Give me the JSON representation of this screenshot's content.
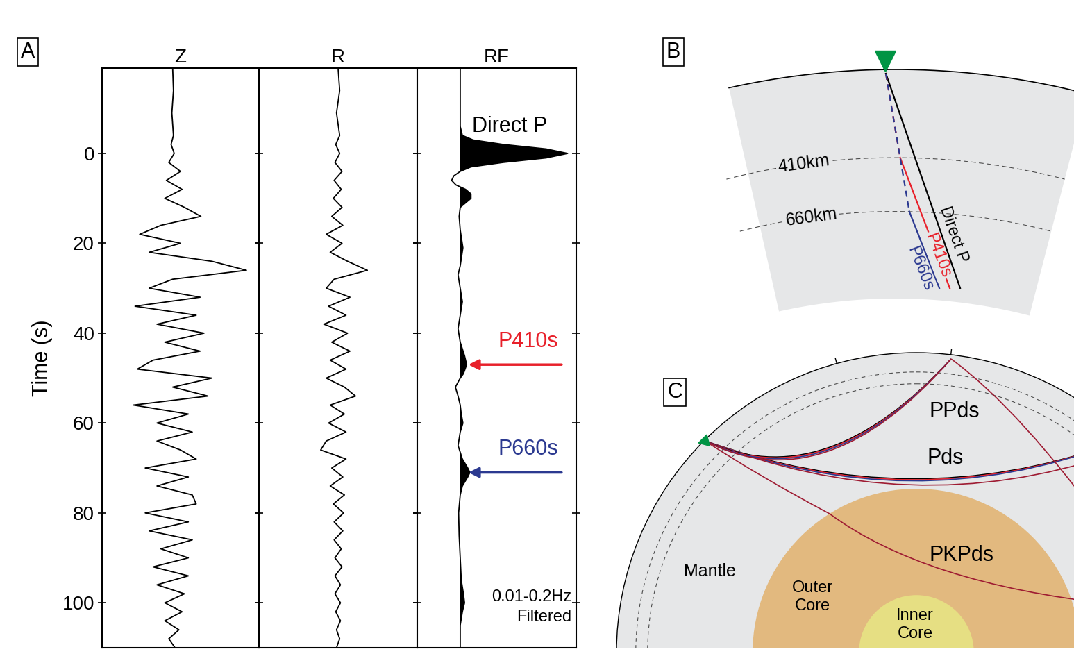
{
  "panel_a": {
    "label": "A"
  },
  "chart_data": [
    {
      "type": "line",
      "title": "Z",
      "ylabel": "Time (s)",
      "orientation": "horizontal",
      "color": "#000000",
      "x": [
        -19,
        -14,
        -9,
        -4,
        -2,
        0,
        2,
        4,
        6,
        8,
        10,
        12,
        14,
        16,
        18,
        20,
        22,
        24,
        26,
        28,
        30,
        32,
        34,
        36,
        38,
        40,
        42,
        44,
        46,
        48,
        50,
        52,
        54,
        56,
        58,
        60,
        62,
        64,
        66,
        68,
        70,
        72,
        74,
        76,
        78,
        80,
        82,
        84,
        86,
        88,
        90,
        92,
        94,
        96,
        98,
        100,
        102,
        104,
        106,
        108,
        110
      ],
      "values": [
        0,
        0.01,
        -0.01,
        0.01,
        -0.02,
        0.02,
        -0.05,
        0.1,
        -0.08,
        0.12,
        -0.1,
        0.15,
        0.36,
        -0.15,
        -0.42,
        0.1,
        -0.3,
        0.5,
        0.94,
        0.0,
        -0.3,
        0.35,
        -0.48,
        0.3,
        -0.2,
        0.4,
        -0.1,
        0.35,
        -0.25,
        -0.45,
        0.5,
        0.0,
        0.45,
        -0.5,
        0.2,
        -0.2,
        0.25,
        -0.2,
        0.1,
        0.3,
        -0.35,
        0.2,
        -0.2,
        0.25,
        0.3,
        -0.35,
        0.2,
        -0.3,
        0.25,
        -0.15,
        0.2,
        -0.25,
        0.2,
        -0.2,
        0.15,
        -0.1,
        0.12,
        -0.1,
        0.08,
        -0.05,
        0.03
      ],
      "xlim": [
        -0.9,
        1.1
      ],
      "ylim": [
        110,
        -19
      ],
      "yticks": [
        0,
        20,
        40,
        60,
        80,
        100
      ],
      "tick_labels": "y"
    },
    {
      "type": "line",
      "title": "R",
      "orientation": "horizontal",
      "color": "#000000",
      "x": [
        -19,
        -14,
        -9,
        -4,
        -2,
        0,
        2,
        4,
        6,
        8,
        10,
        12,
        14,
        16,
        18,
        20,
        22,
        24,
        26,
        28,
        30,
        32,
        34,
        36,
        38,
        40,
        42,
        44,
        46,
        48,
        50,
        52,
        54,
        56,
        58,
        60,
        62,
        64,
        66,
        68,
        70,
        72,
        74,
        76,
        78,
        80,
        82,
        84,
        86,
        88,
        90,
        92,
        94,
        96,
        98,
        100,
        102,
        104,
        106,
        108,
        110
      ],
      "values": [
        0,
        0.02,
        -0.02,
        0.02,
        -0.03,
        0.02,
        -0.04,
        0.05,
        -0.05,
        0.04,
        -0.06,
        0.05,
        -0.08,
        0.06,
        -0.15,
        0.05,
        -0.1,
        0.12,
        0.37,
        -0.05,
        -0.15,
        0.15,
        -0.12,
        0.1,
        -0.18,
        0.12,
        -0.08,
        0.15,
        -0.1,
        0.1,
        -0.15,
        0.08,
        0.22,
        -0.1,
        0.08,
        -0.12,
        0.1,
        -0.15,
        -0.22,
        0.1,
        -0.08,
        0.06,
        -0.1,
        0.08,
        -0.06,
        0.07,
        -0.05,
        0.06,
        -0.05,
        0.04,
        -0.04,
        0.05,
        -0.04,
        0.03,
        -0.04,
        0.03,
        -0.03,
        0.03,
        -0.02,
        0.02,
        -0.02
      ],
      "xlim": [
        -1,
        1
      ],
      "ylim": [
        110,
        -19
      ],
      "yticks": [
        0,
        20,
        40,
        60,
        80,
        100
      ],
      "tick_labels": false
    },
    {
      "type": "area",
      "title": "RF",
      "orientation": "horizontal",
      "color": "#000000",
      "x": [
        -19,
        -6,
        -4,
        -3,
        -2,
        -1,
        0,
        1,
        2,
        3,
        4,
        5,
        6,
        7,
        8,
        9,
        10,
        11,
        12,
        14,
        17,
        21,
        25,
        27,
        30,
        33,
        36,
        39,
        42,
        45,
        47,
        49,
        50,
        52,
        54,
        56,
        58,
        60,
        62,
        65,
        68,
        70,
        71,
        72,
        74,
        76,
        80,
        85,
        90,
        95,
        98,
        100,
        102,
        105,
        110
      ],
      "values": [
        0,
        0,
        0.02,
        0.12,
        0.4,
        0.8,
        1.0,
        0.8,
        0.4,
        0.1,
        0.0,
        -0.06,
        -0.08,
        -0.04,
        0.05,
        0.1,
        0.1,
        0.05,
        0.0,
        -0.01,
        0.0,
        0.025,
        0.0,
        -0.02,
        0.0,
        0.02,
        0.0,
        -0.02,
        0.0,
        0.04,
        0.06,
        0.03,
        0.0,
        -0.045,
        -0.02,
        0.0,
        0.01,
        0.025,
        0.0,
        -0.02,
        0.02,
        0.07,
        0.09,
        0.07,
        0.02,
        0.0,
        -0.015,
        -0.01,
        0.0,
        0.01,
        0.03,
        0.04,
        0.02,
        0.0,
        0.0
      ],
      "xlim": [
        -0.4,
        1.08
      ],
      "ylim": [
        110,
        -19
      ],
      "yticks": [
        0,
        20,
        40,
        60,
        80,
        100
      ],
      "tick_labels": false,
      "annotations": {
        "peak_label": "Direct P",
        "arrows": [
          {
            "text": "P410s",
            "time": 47,
            "color": "#e8202a"
          },
          {
            "text": "P660s",
            "time": 71,
            "color": "#2b3990"
          }
        ],
        "note": "0.01-0.2Hz\nFiltered"
      }
    }
  ],
  "panel_b": {
    "label": "B",
    "layers": [
      {
        "depth": 410,
        "text": "410km"
      },
      {
        "depth": 660,
        "text": "660km"
      }
    ],
    "rays": [
      {
        "name": "Direct P",
        "color": "#000000"
      },
      {
        "name": "P410s",
        "color": "#e8202a",
        "depth": 410
      },
      {
        "name": "P660s",
        "color": "#2b3990",
        "depth": 660
      }
    ],
    "station": {
      "color": "#009444"
    }
  },
  "panel_c": {
    "label": "C",
    "phases": [
      {
        "name": "PPds"
      },
      {
        "name": "Pds"
      },
      {
        "name": "PKPds"
      }
    ],
    "regions": [
      {
        "name": "Mantle",
        "color": "#e6e7e8"
      },
      {
        "name": "Outer\nCore",
        "color": "#e2b97f"
      },
      {
        "name": "Inner\nCore",
        "color": "#e6df83"
      }
    ],
    "ray_color": "#9e1b32"
  }
}
